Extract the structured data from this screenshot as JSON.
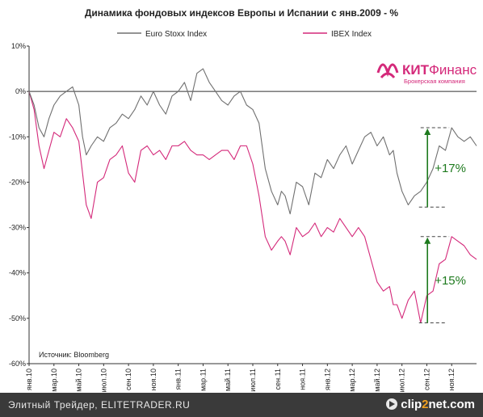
{
  "chart_data": {
    "type": "line",
    "title": "Динамика фондовых индексов Европы и Испании с янв.2009 - %",
    "ylim": [
      -60,
      10
    ],
    "yticks": [
      "10%",
      "0%",
      "-10%",
      "-20%",
      "-30%",
      "-40%",
      "-50%",
      "-60%"
    ],
    "yvalues": [
      10,
      0,
      -10,
      -20,
      -30,
      -40,
      -50,
      -60
    ],
    "xlim": [
      0,
      36
    ],
    "xticks": [
      "янв.10",
      "мар.10",
      "май.10",
      "июл.10",
      "сен.10",
      "ноя.10",
      "янв.11",
      "мар.11",
      "май.11",
      "июл.11",
      "сен.11",
      "ноя.11",
      "янв.12",
      "мар.12",
      "май.12",
      "июл.12",
      "сен.12",
      "ноя.12"
    ],
    "series": [
      {
        "name": "Euro Stoxx Index",
        "color": "#707070",
        "x": [
          0,
          0.4,
          0.8,
          1.2,
          1.6,
          2,
          2.5,
          3,
          3.5,
          4,
          4.3,
          4.6,
          5,
          5.5,
          6,
          6.5,
          7,
          7.5,
          8,
          8.5,
          9,
          9.5,
          10,
          10.5,
          11,
          11.5,
          12,
          12.5,
          13,
          13.5,
          14,
          14.5,
          15,
          15.5,
          16,
          16.5,
          17,
          17.5,
          18,
          18.5,
          19,
          19.5,
          20,
          20.3,
          20.6,
          21,
          21.5,
          22,
          22.5,
          23,
          23.5,
          24,
          24.5,
          25,
          25.5,
          26,
          26.5,
          27,
          27.5,
          28,
          28.5,
          29,
          29.3,
          29.6,
          30,
          30.5,
          31,
          31.5,
          32,
          32.5,
          33,
          33.5,
          34,
          34.5,
          35,
          35.5,
          36
        ],
        "values": [
          0,
          -3,
          -8,
          -10,
          -6,
          -3,
          -1,
          0,
          1,
          -3,
          -10,
          -14,
          -12,
          -10,
          -11,
          -8,
          -7,
          -5,
          -6,
          -4,
          -1,
          -3,
          0,
          -3,
          -5,
          -1,
          0,
          2,
          -2,
          4,
          5,
          2,
          0,
          -2,
          -3,
          -1,
          0,
          -3,
          -4,
          -7,
          -17,
          -22,
          -25,
          -22,
          -23,
          -27,
          -20,
          -21,
          -25,
          -18,
          -19,
          -15,
          -17,
          -14,
          -12,
          -16,
          -13,
          -10,
          -9,
          -12,
          -10,
          -14,
          -13,
          -18,
          -22,
          -25,
          -23,
          -22,
          -20,
          -17,
          -12,
          -13,
          -8,
          -10,
          -11,
          -10,
          -12
        ]
      },
      {
        "name": "IBEX Index",
        "color": "#d4297a",
        "x": [
          0,
          0.4,
          0.8,
          1.2,
          1.6,
          2,
          2.5,
          3,
          3.5,
          4,
          4.3,
          4.6,
          5,
          5.5,
          6,
          6.5,
          7,
          7.5,
          8,
          8.5,
          9,
          9.5,
          10,
          10.5,
          11,
          11.5,
          12,
          12.5,
          13,
          13.5,
          14,
          14.5,
          15,
          15.5,
          16,
          16.5,
          17,
          17.5,
          18,
          18.5,
          19,
          19.5,
          20,
          20.3,
          20.6,
          21,
          21.5,
          22,
          22.5,
          23,
          23.5,
          24,
          24.5,
          25,
          25.5,
          26,
          26.5,
          27,
          27.5,
          28,
          28.5,
          29,
          29.3,
          29.6,
          30,
          30.5,
          31,
          31.5,
          32,
          32.5,
          33,
          33.5,
          34,
          34.5,
          35,
          35.5,
          36
        ],
        "values": [
          0,
          -4,
          -12,
          -17,
          -13,
          -9,
          -10,
          -6,
          -8,
          -11,
          -18,
          -25,
          -28,
          -20,
          -19,
          -15,
          -14,
          -12,
          -18,
          -20,
          -13,
          -12,
          -14,
          -13,
          -15,
          -12,
          -12,
          -11,
          -13,
          -14,
          -14,
          -15,
          -14,
          -13,
          -13,
          -15,
          -12,
          -12,
          -16,
          -23,
          -32,
          -35,
          -33,
          -32,
          -33,
          -36,
          -30,
          -32,
          -31,
          -29,
          -32,
          -30,
          -31,
          -28,
          -30,
          -32,
          -30,
          -32,
          -37,
          -42,
          -44,
          -43,
          -47,
          -47,
          -50,
          -46,
          -44,
          -51,
          -45,
          -44,
          -38,
          -37,
          -32,
          -33,
          -34,
          -36,
          -37
        ]
      }
    ],
    "annotations": [
      {
        "label": "+17%",
        "x_from": 31.5,
        "x_to": 33.8,
        "y_low": -25.5,
        "y_high": -8
      },
      {
        "label": "+15%",
        "x_from": 31.5,
        "x_to": 33.8,
        "y_low": -51,
        "y_high": -32
      }
    ],
    "source": "Источник: Bloomberg",
    "grid": false,
    "legend": "top"
  },
  "logo": {
    "name": "КИТФинанс",
    "name_part1": "КИТ",
    "name_part2": "Финанс",
    "subtitle": "Брокерская компания",
    "color": "#d4297a"
  },
  "footer": {
    "text": "Элитный Трейдер, ELITETRADER.RU",
    "brand_a": "clip",
    "brand_b": "2",
    "brand_c": "net.com"
  }
}
